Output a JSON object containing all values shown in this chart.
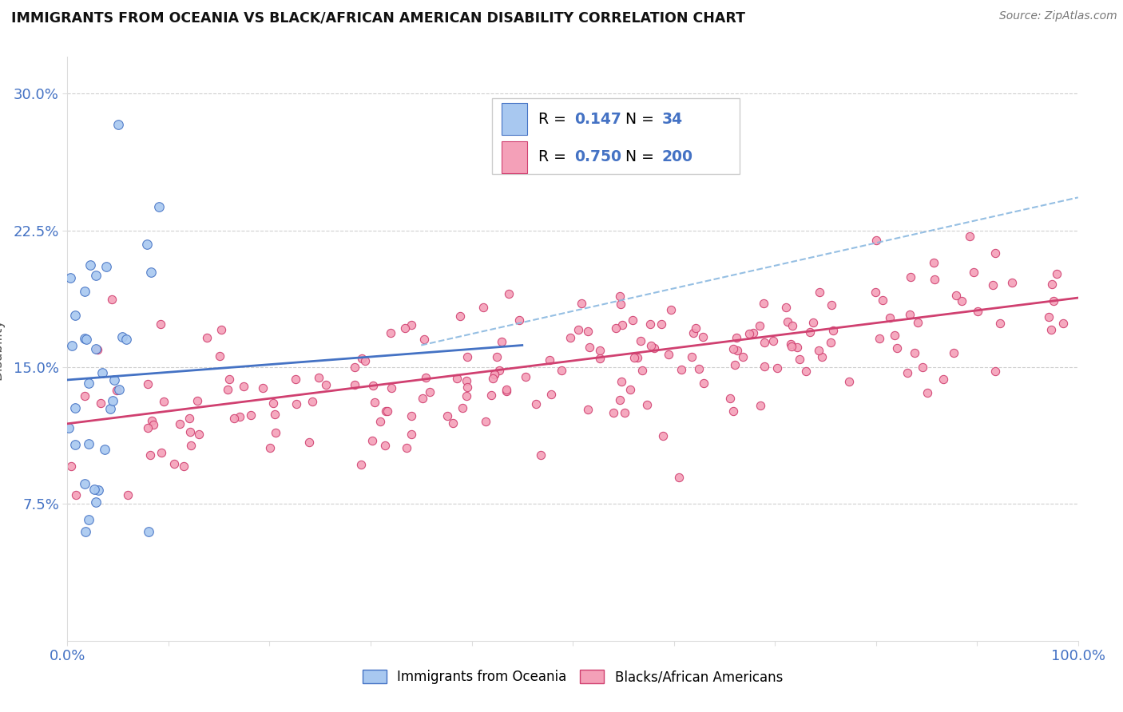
{
  "title": "IMMIGRANTS FROM OCEANIA VS BLACK/AFRICAN AMERICAN DISABILITY CORRELATION CHART",
  "source": "Source: ZipAtlas.com",
  "ylabel": "Disability",
  "title_fontsize": 13,
  "axis_color": "#4472C4",
  "background_color": "#ffffff",
  "series1_name": "Immigrants from Oceania",
  "series1_color": "#A8C8F0",
  "series1_edge_color": "#4472C4",
  "series1_trend_color": "#4472C4",
  "series2_name": "Blacks/African Americans",
  "series2_color": "#F4A0B8",
  "series2_edge_color": "#D04070",
  "series2_trend_color": "#D04070",
  "dashed_line_color": "#8AB8E0",
  "grid_color": "#BBBBBB",
  "ylim": [
    0.0,
    0.32
  ],
  "xlim": [
    0.0,
    1.0
  ],
  "yticks": [
    0.075,
    0.15,
    0.225,
    0.3
  ],
  "ytick_labels": [
    "7.5%",
    "15.0%",
    "22.5%",
    "30.0%"
  ],
  "xticks": [
    0.0,
    0.1,
    0.2,
    0.3,
    0.4,
    0.5,
    0.6,
    0.7,
    0.8,
    0.9,
    1.0
  ],
  "xtick_labels": [
    "0.0%",
    "",
    "",
    "",
    "",
    "",
    "",
    "",
    "",
    "",
    "100.0%"
  ],
  "seed1": 42,
  "seed2": 123,
  "n1": 34,
  "n2": 200,
  "blue_line_x": [
    0.0,
    0.45
  ],
  "blue_line_y": [
    0.143,
    0.162
  ],
  "pink_line_x": [
    0.0,
    1.0
  ],
  "pink_line_y": [
    0.119,
    0.188
  ],
  "dash_line_x": [
    0.35,
    1.0
  ],
  "dash_line_y": [
    0.162,
    0.243
  ]
}
